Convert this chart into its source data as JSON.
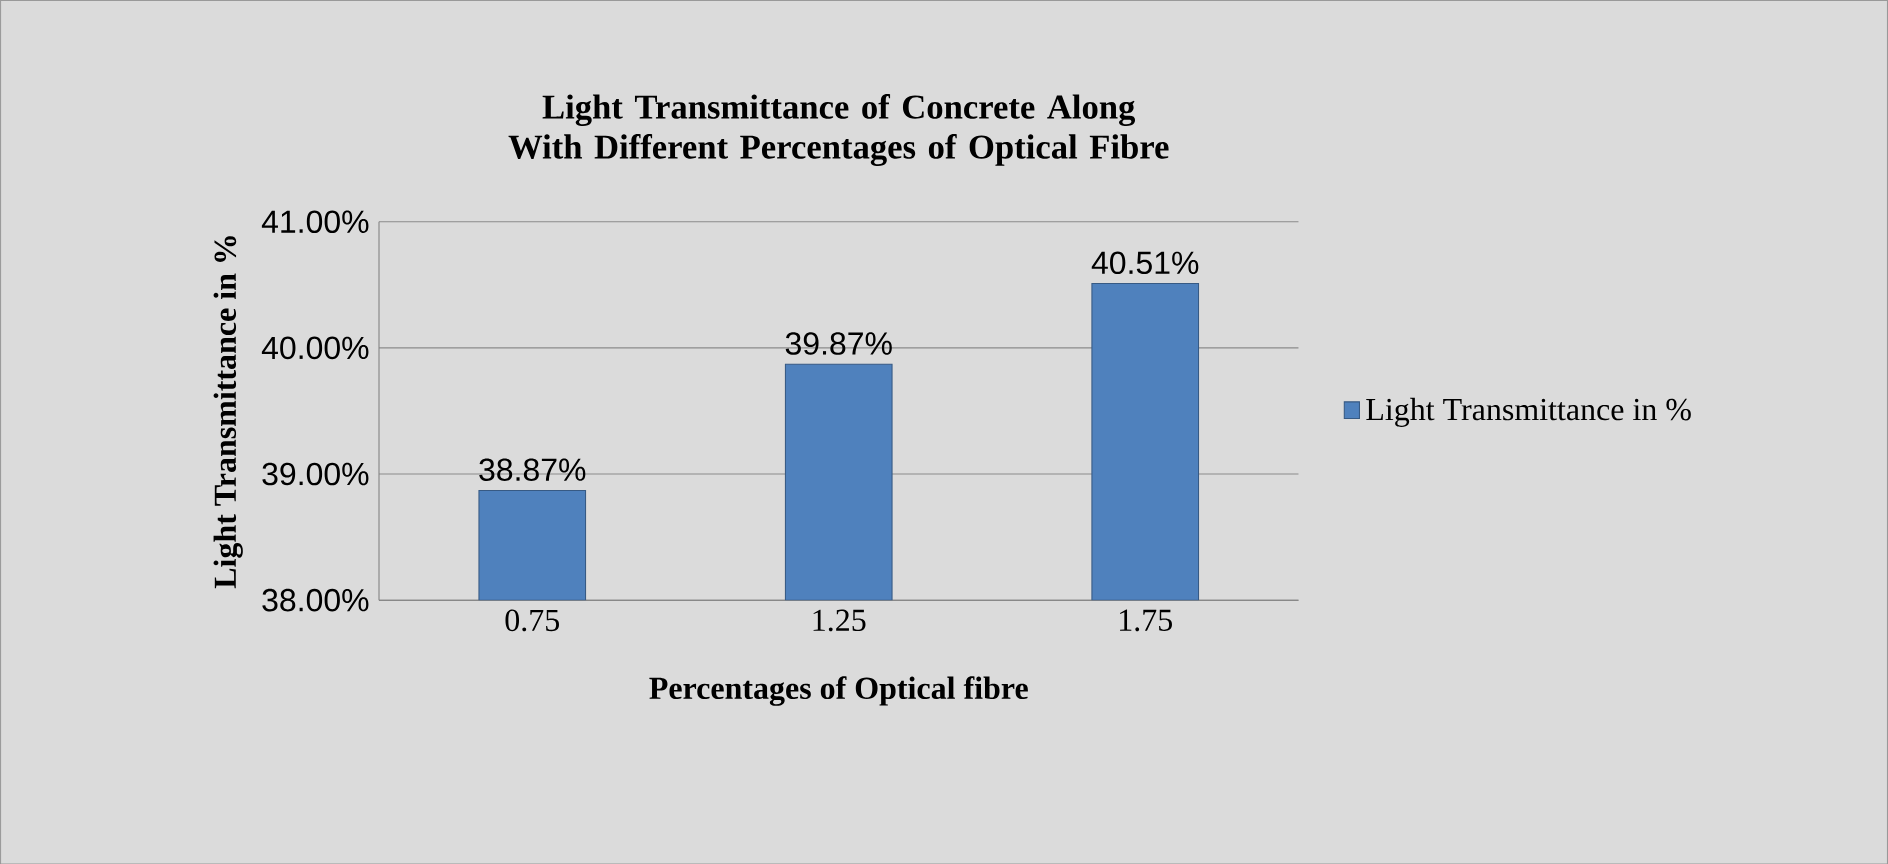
{
  "chart_data": {
    "type": "bar",
    "title": "Light Transmittance  of Concrete Along With Different Percentages of Optical Fibre",
    "xlabel": "Percentages of Optical fibre",
    "ylabel": "Light Transmittance in %",
    "categories": [
      "0.75",
      "1.25",
      "1.75"
    ],
    "series": [
      {
        "name": "Light Transmittance in %",
        "color": "#4f81bd",
        "values": [
          38.87,
          39.87,
          40.51
        ],
        "value_labels": [
          "38.87%",
          "39.87%",
          "40.51%"
        ]
      }
    ],
    "ylim": [
      38,
      41
    ],
    "yticks": [
      {
        "value": 38,
        "label": "38.00%"
      },
      {
        "value": 39,
        "label": "39.00%"
      },
      {
        "value": 40,
        "label": "40.00%"
      },
      {
        "value": 41,
        "label": "41.00%"
      }
    ],
    "grid": "y",
    "legend": "right"
  }
}
